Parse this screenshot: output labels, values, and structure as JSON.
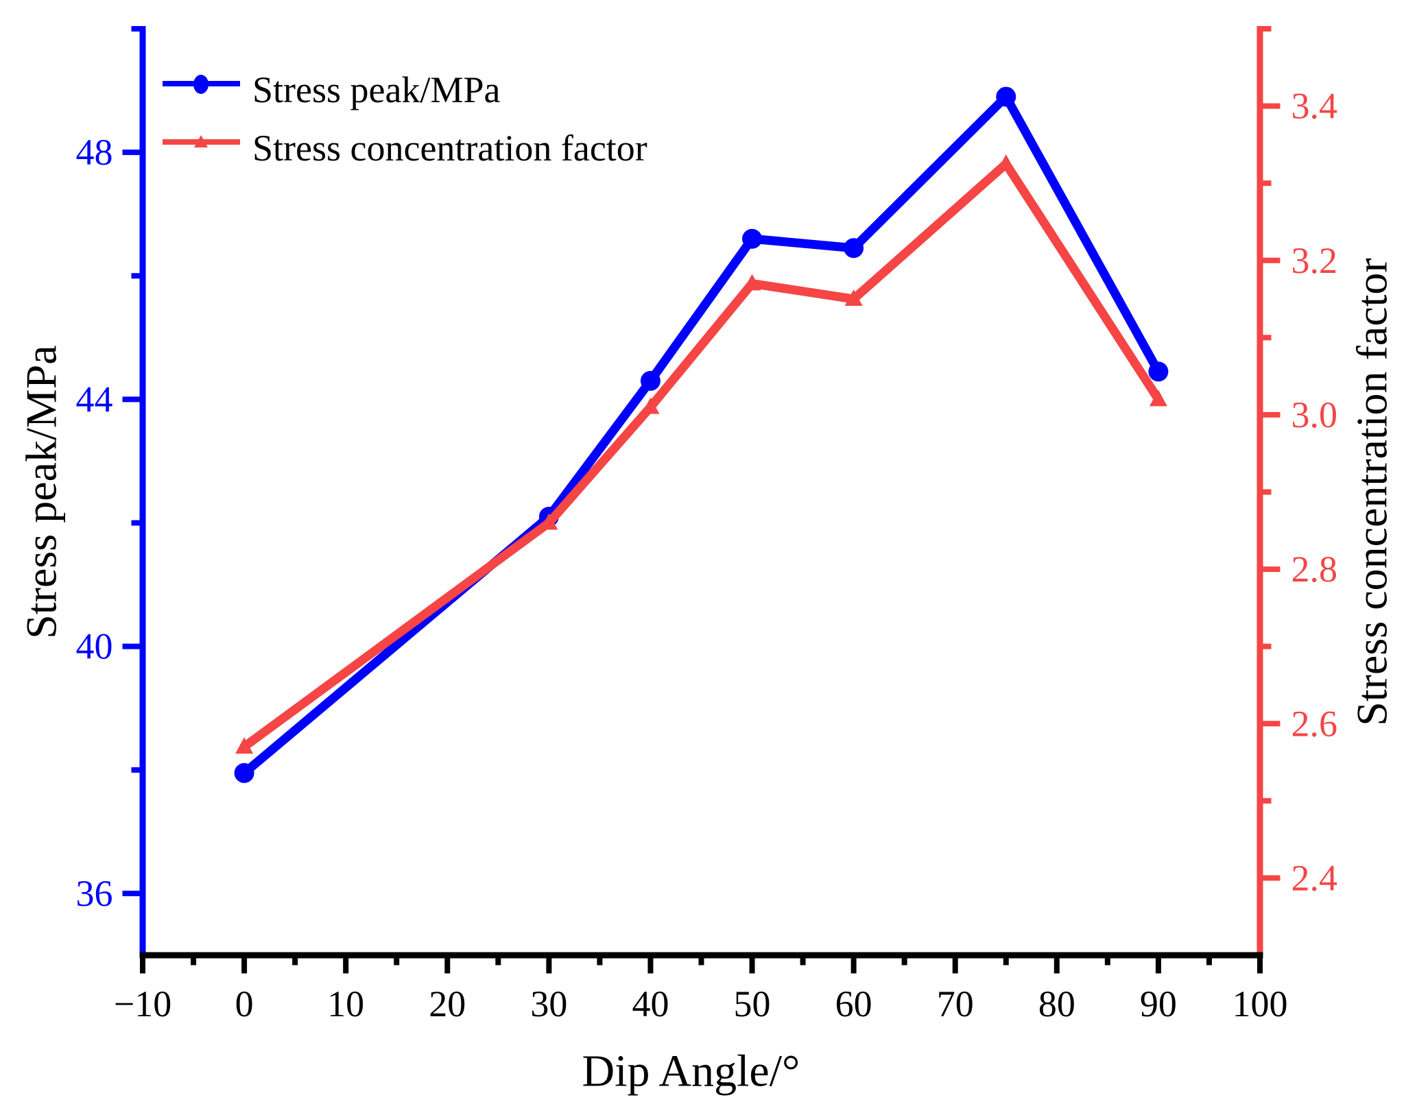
{
  "chart_data": {
    "type": "line",
    "title": "",
    "background": "#FFFFFF",
    "grid": false,
    "x": [
      0,
      30,
      40,
      50,
      60,
      75,
      90
    ],
    "series": [
      {
        "name": "Stress peak/MPa",
        "axis": "left",
        "color": "#0000FF",
        "marker": "circle",
        "values": [
          37.95,
          42.1,
          44.3,
          46.6,
          46.45,
          48.9,
          44.45
        ]
      },
      {
        "name": "Stress concentration factor",
        "axis": "right",
        "color": "#F54545",
        "marker": "triangle-up",
        "values": [
          2.57,
          2.86,
          3.01,
          3.17,
          3.15,
          3.325,
          3.02
        ]
      }
    ],
    "x_axis": {
      "label": "Dip Angle/°",
      "min": -10,
      "max": 100,
      "major_tick_step": 10,
      "minor_tick_step": 5,
      "major_tick_labels": [
        "−10",
        "0",
        "10",
        "20",
        "30",
        "40",
        "50",
        "60",
        "70",
        "80",
        "90",
        "100"
      ],
      "color": "#000000"
    },
    "left_axis": {
      "label": "Stress peak/MPa",
      "min": 35,
      "max": 50,
      "major_ticks": [
        36,
        40,
        44,
        48
      ],
      "major_tick_labels": [
        "36",
        "40",
        "44",
        "48"
      ],
      "minor_tick_step": 2,
      "color": "#0000FF",
      "title_color": "#000000"
    },
    "right_axis": {
      "label": "Stress concentration factor",
      "min": 2.3,
      "max": 3.5,
      "major_ticks": [
        2.4,
        2.6,
        2.8,
        3.0,
        3.2,
        3.4
      ],
      "major_tick_labels": [
        "2.4",
        "2.6",
        "2.8",
        "3.0",
        "3.2",
        "3.4"
      ],
      "minor_tick_step": 0.1,
      "color": "#F54545",
      "title_color": "#000000"
    },
    "legend": {
      "position": "top-left",
      "entries": [
        {
          "label": "Stress peak/MPa"
        },
        {
          "label": "Stress concentration factor"
        }
      ]
    }
  }
}
